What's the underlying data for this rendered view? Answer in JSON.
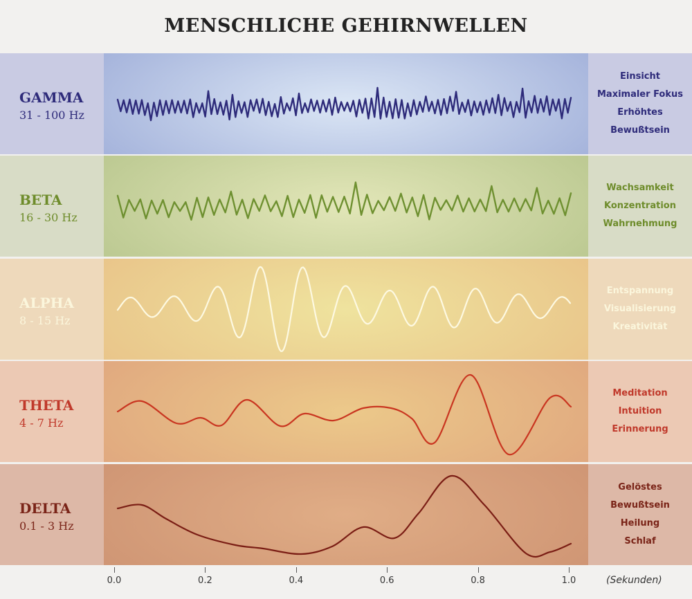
{
  "title": "MENSCHLICHE GEHIRNWELLEN",
  "bands": [
    {
      "name": "GAMMA",
      "freq": "31 - 100 Hz",
      "states": [
        "Einsicht",
        "Maximaler Fokus",
        "Erhöhtes",
        "Bewußtsein"
      ],
      "colors": {
        "text": "#2e2b7a",
        "stroke": "#2e2b7a",
        "left": "#c9cbe3",
        "right": "#c9cbe3",
        "mid_edge": "#9aa9d6",
        "mid_center": "#dbe6f5"
      }
    },
    {
      "name": "BETA",
      "freq": "16 - 30 Hz",
      "states": [
        "Wachsamkeit",
        "Konzentration",
        "Wahrnehmung"
      ],
      "colors": {
        "text": "#6e8c2b",
        "stroke": "#6e9030",
        "left": "#d8dcc6",
        "right": "#d8dcc6",
        "mid_edge": "#b4c38a",
        "mid_center": "#e2e6b8"
      }
    },
    {
      "name": "ALPHA",
      "freq": "8 - 15 Hz",
      "states": [
        "Entspannung",
        "Visualisierung",
        "Kreativität"
      ],
      "colors": {
        "text": "#fbf6dc",
        "stroke": "#fdf9e2",
        "left": "#eed9bb",
        "right": "#eed9bb",
        "mid_edge": "#e8bf86",
        "mid_center": "#efe39e"
      }
    },
    {
      "name": "THETA",
      "freq": "4 - 7 Hz",
      "states": [
        "Meditation",
        "Intuition",
        "Erinnerung"
      ],
      "colors": {
        "text": "#c0392b",
        "stroke": "#c93520",
        "left": "#ecc9b4",
        "right": "#ecc9b4",
        "mid_edge": "#dea27d",
        "mid_center": "#ecc98a"
      }
    },
    {
      "name": "DELTA",
      "freq": "0.1 - 3 Hz",
      "states": [
        "Gelöstes",
        "Bewußtsein",
        "Heilung",
        "Schlaf"
      ],
      "colors": {
        "text": "#7a2418",
        "stroke": "#7a1d14",
        "left": "#ddb8a7",
        "right": "#ddb8a7",
        "mid_edge": "#cc9171",
        "mid_center": "#e0ad86"
      }
    }
  ],
  "x_axis": {
    "ticks": [
      "0.0",
      "0.2",
      "0.4",
      "0.6",
      "0.8",
      "1.0"
    ],
    "tick_values": [
      0,
      0.2,
      0.4,
      0.6,
      0.8,
      1.0
    ],
    "unit": "(Sekunden)"
  }
}
